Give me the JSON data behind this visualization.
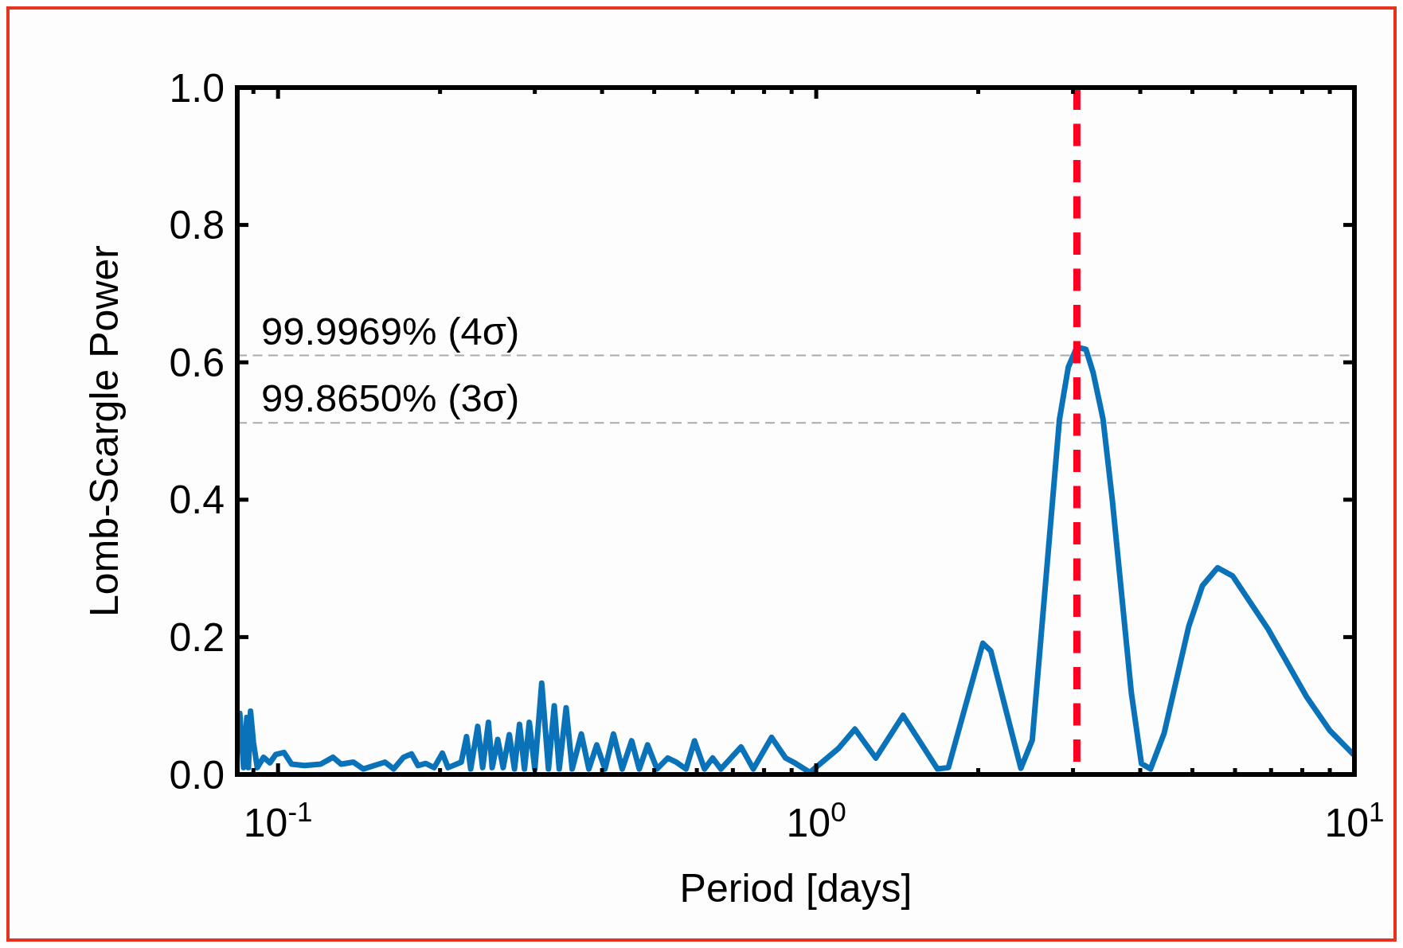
{
  "chart_data": {
    "type": "line",
    "xlabel": "Period [days]",
    "ylabel": "Lomb-Scargle Power",
    "log": "x",
    "grid": false,
    "marker": "none",
    "line_style": "solid",
    "xlim": [
      0.084,
      10
    ],
    "ylim": [
      0,
      1
    ],
    "xticks": [
      {
        "value": 0.09,
        "label": null
      },
      {
        "value": 0.1,
        "label": "10$^{-1}$"
      },
      {
        "value": 0.2,
        "label": null
      },
      {
        "value": 0.3,
        "label": null
      },
      {
        "value": 0.4,
        "label": null
      },
      {
        "value": 0.5,
        "label": null
      },
      {
        "value": 0.6,
        "label": null
      },
      {
        "value": 0.7,
        "label": null
      },
      {
        "value": 0.8,
        "label": null
      },
      {
        "value": 0.9,
        "label": null
      },
      {
        "value": 1,
        "label": "10$^{0}$"
      },
      {
        "value": 2,
        "label": null
      },
      {
        "value": 3,
        "label": null
      },
      {
        "value": 4,
        "label": null
      },
      {
        "value": 5,
        "label": null
      },
      {
        "value": 6,
        "label": null
      },
      {
        "value": 7,
        "label": null
      },
      {
        "value": 8,
        "label": null
      },
      {
        "value": 9,
        "label": null
      },
      {
        "value": 10,
        "label": "10$^{1}$"
      }
    ],
    "yticks": [
      {
        "value": 0,
        "label": "0.0"
      },
      {
        "value": 0.2,
        "label": "0.2"
      },
      {
        "value": 0.4,
        "label": "0.4"
      },
      {
        "value": 0.6,
        "label": "0.6"
      },
      {
        "value": 0.8,
        "label": "0.8"
      },
      {
        "value": 1,
        "label": "1.0"
      }
    ],
    "series": [
      {
        "color": "#0a72b8",
        "x": [
          0.0849,
          0.0863,
          0.0875,
          0.0881,
          0.0889,
          0.09,
          0.0915,
          0.094,
          0.0966,
          0.099,
          0.1026,
          0.106,
          0.112,
          0.12,
          0.1265,
          0.131,
          0.138,
          0.144,
          0.158,
          0.164,
          0.171,
          0.177,
          0.182,
          0.188,
          0.195,
          0.202,
          0.207,
          0.219,
          0.224,
          0.228,
          0.235,
          0.24,
          0.246,
          0.25,
          0.256,
          0.262,
          0.269,
          0.275,
          0.281,
          0.287,
          0.293,
          0.3,
          0.309,
          0.318,
          0.326,
          0.333,
          0.343,
          0.352,
          0.366,
          0.378,
          0.391,
          0.405,
          0.42,
          0.436,
          0.454,
          0.469,
          0.486,
          0.506,
          0.53,
          0.549,
          0.573,
          0.594,
          0.62,
          0.642,
          0.665,
          0.725,
          0.764,
          0.826,
          0.877,
          0.916,
          0.973,
          1.1,
          1.18,
          1.29,
          1.45,
          1.68,
          1.76,
          2.04,
          2.11,
          2.4,
          2.52,
          2.83,
          2.94,
          3.05,
          3.17,
          3.27,
          3.41,
          3.55,
          3.85,
          4.02,
          4.18,
          4.43,
          4.92,
          5.22,
          5.57,
          5.94,
          6.92,
          8.15,
          9.0,
          9.93
        ],
        "values": [
          0.089,
          0.01,
          0.083,
          0.01,
          0.092,
          0.047,
          0.01,
          0.025,
          0.017,
          0.029,
          0.032,
          0.015,
          0.013,
          0.015,
          0.025,
          0.015,
          0.018,
          0.008,
          0.018,
          0.008,
          0.025,
          0.03,
          0.013,
          0.016,
          0.01,
          0.031,
          0.01,
          0.018,
          0.055,
          0.008,
          0.07,
          0.01,
          0.076,
          0.01,
          0.051,
          0.01,
          0.058,
          0.008,
          0.073,
          0.008,
          0.076,
          0.008,
          0.133,
          0.008,
          0.1,
          0.008,
          0.097,
          0.008,
          0.059,
          0.008,
          0.043,
          0.008,
          0.059,
          0.008,
          0.049,
          0.008,
          0.043,
          0.008,
          0.024,
          0.018,
          0.008,
          0.049,
          0.008,
          0.024,
          0.008,
          0.04,
          0.008,
          0.054,
          0.024,
          0.016,
          0.003,
          0.038,
          0.066,
          0.024,
          0.086,
          0.008,
          0.01,
          0.191,
          0.18,
          0.009,
          0.05,
          0.516,
          0.593,
          0.622,
          0.619,
          0.585,
          0.518,
          0.399,
          0.119,
          0.016,
          0.008,
          0.06,
          0.215,
          0.275,
          0.301,
          0.289,
          0.211,
          0.113,
          0.064,
          0.03
        ]
      }
    ],
    "ref_lines": [
      {
        "axis": "y",
        "value": 0.61,
        "label": "99.9969% (4σ)",
        "color": "#aaaaaa",
        "line_style": "dashed"
      },
      {
        "axis": "y",
        "value": 0.512,
        "label": "99.8650% (3σ)",
        "color": "#aaaaaa",
        "line_style": "dashed"
      },
      {
        "axis": "x",
        "value": 3.05,
        "label": null,
        "color": "#ff0022",
        "line_style": "dashed"
      }
    ]
  }
}
